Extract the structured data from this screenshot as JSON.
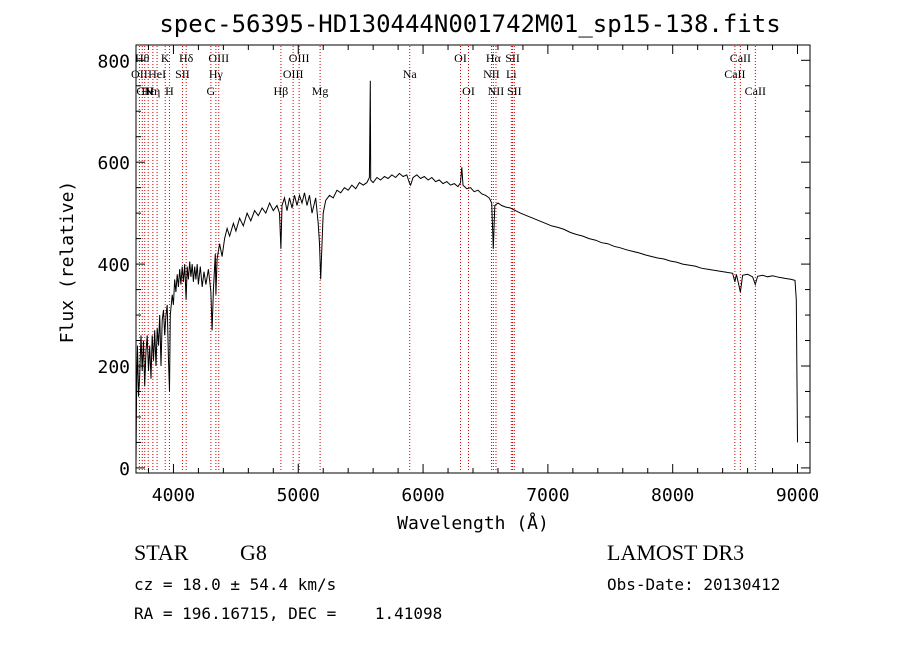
{
  "chart_data": {
    "type": "line",
    "title": "spec-56395-HD130444N001742M01_sp15-138.fits",
    "xlabel": "Wavelength (Å)",
    "ylabel": "Flux (relative)",
    "xlim": [
      3700,
      9100
    ],
    "ylim": [
      -10,
      830
    ],
    "x_ticks": [
      4000,
      5000,
      6000,
      7000,
      8000,
      9000
    ],
    "y_ticks": [
      0,
      200,
      400,
      600,
      800
    ],
    "series": [
      {
        "name": "spectrum",
        "points": [
          [
            3700,
            10
          ],
          [
            3705,
            150
          ],
          [
            3712,
            240
          ],
          [
            3720,
            140
          ],
          [
            3730,
            180
          ],
          [
            3740,
            260
          ],
          [
            3750,
            190
          ],
          [
            3760,
            250
          ],
          [
            3770,
            160
          ],
          [
            3780,
            230
          ],
          [
            3790,
            260
          ],
          [
            3800,
            190
          ],
          [
            3810,
            240
          ],
          [
            3820,
            175
          ],
          [
            3830,
            260
          ],
          [
            3840,
            210
          ],
          [
            3850,
            270
          ],
          [
            3860,
            200
          ],
          [
            3870,
            275
          ],
          [
            3880,
            240
          ],
          [
            3890,
            300
          ],
          [
            3900,
            200
          ],
          [
            3910,
            290
          ],
          [
            3920,
            310
          ],
          [
            3930,
            260
          ],
          [
            3940,
            300
          ],
          [
            3950,
            320
          ],
          [
            3960,
            210
          ],
          [
            3968,
            150
          ],
          [
            3975,
            300
          ],
          [
            3990,
            340
          ],
          [
            4000,
            320
          ],
          [
            4010,
            370
          ],
          [
            4020,
            345
          ],
          [
            4030,
            380
          ],
          [
            4040,
            355
          ],
          [
            4050,
            390
          ],
          [
            4060,
            360
          ],
          [
            4070,
            395
          ],
          [
            4080,
            365
          ],
          [
            4090,
            400
          ],
          [
            4101,
            330
          ],
          [
            4110,
            395
          ],
          [
            4120,
            370
          ],
          [
            4130,
            405
          ],
          [
            4140,
            375
          ],
          [
            4150,
            400
          ],
          [
            4160,
            365
          ],
          [
            4170,
            395
          ],
          [
            4180,
            370
          ],
          [
            4190,
            400
          ],
          [
            4200,
            360
          ],
          [
            4215,
            395
          ],
          [
            4230,
            355
          ],
          [
            4245,
            385
          ],
          [
            4260,
            360
          ],
          [
            4280,
            390
          ],
          [
            4300,
            345
          ],
          [
            4310,
            270
          ],
          [
            4320,
            350
          ],
          [
            4335,
            420
          ],
          [
            4340,
            340
          ],
          [
            4350,
            410
          ],
          [
            4370,
            440
          ],
          [
            4390,
            415
          ],
          [
            4410,
            450
          ],
          [
            4430,
            470
          ],
          [
            4450,
            455
          ],
          [
            4480,
            480
          ],
          [
            4500,
            465
          ],
          [
            4530,
            490
          ],
          [
            4560,
            475
          ],
          [
            4590,
            500
          ],
          [
            4620,
            485
          ],
          [
            4650,
            505
          ],
          [
            4680,
            495
          ],
          [
            4710,
            510
          ],
          [
            4740,
            500
          ],
          [
            4770,
            520
          ],
          [
            4800,
            505
          ],
          [
            4830,
            515
          ],
          [
            4850,
            500
          ],
          [
            4861,
            430
          ],
          [
            4870,
            515
          ],
          [
            4890,
            530
          ],
          [
            4910,
            505
          ],
          [
            4930,
            530
          ],
          [
            4950,
            510
          ],
          [
            4970,
            535
          ],
          [
            4990,
            515
          ],
          [
            5010,
            535
          ],
          [
            5030,
            520
          ],
          [
            5050,
            540
          ],
          [
            5070,
            515
          ],
          [
            5090,
            535
          ],
          [
            5110,
            500
          ],
          [
            5140,
            530
          ],
          [
            5160,
            480
          ],
          [
            5170,
            440
          ],
          [
            5180,
            370
          ],
          [
            5190,
            440
          ],
          [
            5200,
            500
          ],
          [
            5220,
            525
          ],
          [
            5250,
            535
          ],
          [
            5280,
            530
          ],
          [
            5310,
            545
          ],
          [
            5340,
            540
          ],
          [
            5370,
            550
          ],
          [
            5400,
            545
          ],
          [
            5430,
            555
          ],
          [
            5460,
            548
          ],
          [
            5490,
            560
          ],
          [
            5520,
            555
          ],
          [
            5550,
            560
          ],
          [
            5570,
            570
          ],
          [
            5577,
            760
          ],
          [
            5580,
            565
          ],
          [
            5600,
            560
          ],
          [
            5630,
            570
          ],
          [
            5660,
            565
          ],
          [
            5690,
            572
          ],
          [
            5720,
            568
          ],
          [
            5750,
            575
          ],
          [
            5780,
            570
          ],
          [
            5810,
            578
          ],
          [
            5840,
            572
          ],
          [
            5870,
            575
          ],
          [
            5890,
            560
          ],
          [
            5900,
            555
          ],
          [
            5920,
            570
          ],
          [
            5950,
            575
          ],
          [
            5980,
            568
          ],
          [
            6010,
            572
          ],
          [
            6040,
            565
          ],
          [
            6070,
            570
          ],
          [
            6100,
            562
          ],
          [
            6130,
            565
          ],
          [
            6160,
            558
          ],
          [
            6190,
            562
          ],
          [
            6220,
            555
          ],
          [
            6250,
            558
          ],
          [
            6280,
            552
          ],
          [
            6300,
            560
          ],
          [
            6310,
            590
          ],
          [
            6320,
            555
          ],
          [
            6350,
            548
          ],
          [
            6380,
            550
          ],
          [
            6410,
            542
          ],
          [
            6440,
            545
          ],
          [
            6470,
            538
          ],
          [
            6500,
            535
          ],
          [
            6530,
            530
          ],
          [
            6550,
            520
          ],
          [
            6563,
            430
          ],
          [
            6575,
            515
          ],
          [
            6600,
            520
          ],
          [
            6630,
            515
          ],
          [
            6660,
            512
          ],
          [
            6700,
            510
          ],
          [
            6740,
            505
          ],
          [
            6780,
            500
          ],
          [
            6830,
            495
          ],
          [
            6880,
            490
          ],
          [
            6930,
            485
          ],
          [
            6980,
            480
          ],
          [
            7030,
            475
          ],
          [
            7080,
            472
          ],
          [
            7130,
            468
          ],
          [
            7180,
            462
          ],
          [
            7230,
            458
          ],
          [
            7280,
            455
          ],
          [
            7330,
            450
          ],
          [
            7380,
            447
          ],
          [
            7430,
            442
          ],
          [
            7480,
            440
          ],
          [
            7530,
            435
          ],
          [
            7580,
            432
          ],
          [
            7630,
            428
          ],
          [
            7680,
            425
          ],
          [
            7730,
            422
          ],
          [
            7780,
            418
          ],
          [
            7830,
            415
          ],
          [
            7880,
            412
          ],
          [
            7930,
            410
          ],
          [
            7980,
            406
          ],
          [
            8030,
            404
          ],
          [
            8080,
            400
          ],
          [
            8130,
            398
          ],
          [
            8180,
            396
          ],
          [
            8230,
            392
          ],
          [
            8280,
            390
          ],
          [
            8330,
            388
          ],
          [
            8380,
            386
          ],
          [
            8430,
            384
          ],
          [
            8480,
            382
          ],
          [
            8498,
            365
          ],
          [
            8510,
            380
          ],
          [
            8542,
            345
          ],
          [
            8560,
            378
          ],
          [
            8600,
            380
          ],
          [
            8640,
            375
          ],
          [
            8662,
            360
          ],
          [
            8680,
            376
          ],
          [
            8720,
            378
          ],
          [
            8760,
            375
          ],
          [
            8800,
            377
          ],
          [
            8850,
            374
          ],
          [
            8900,
            372
          ],
          [
            8950,
            370
          ],
          [
            8980,
            368
          ],
          [
            8990,
            330
          ],
          [
            9000,
            50
          ]
        ]
      }
    ],
    "lines": [
      {
        "wavelength": 3727,
        "label": "OII",
        "row": 2
      },
      {
        "wavelength": 3750,
        "label": "Hθ",
        "row": 1
      },
      {
        "wavelength": 3770,
        "label": "CN",
        "row": 3
      },
      {
        "wavelength": 3798,
        "label": "Hε",
        "row": 3
      },
      {
        "wavelength": 3835,
        "label": "Hη",
        "row": 3
      },
      {
        "wavelength": 3869,
        "label": "HeI",
        "row": 2
      },
      {
        "wavelength": 3934,
        "label": "K",
        "row": 1
      },
      {
        "wavelength": 3968,
        "label": "H",
        "row": 3
      },
      {
        "wavelength": 4072,
        "label": "SII",
        "row": 2
      },
      {
        "wavelength": 4102,
        "label": "Hδ",
        "row": 1
      },
      {
        "wavelength": 4300,
        "label": "G",
        "row": 3
      },
      {
        "wavelength": 4340,
        "label": "Hγ",
        "row": 2
      },
      {
        "wavelength": 4363,
        "label": "OIII",
        "row": 1
      },
      {
        "wavelength": 4861,
        "label": "Hβ",
        "row": 3
      },
      {
        "wavelength": 4959,
        "label": "OIII",
        "row": 2
      },
      {
        "wavelength": 5007,
        "label": "OIII",
        "row": 1
      },
      {
        "wavelength": 5175,
        "label": "Mg",
        "row": 3
      },
      {
        "wavelength": 5893,
        "label": "Na",
        "row": 2
      },
      {
        "wavelength": 6300,
        "label": "OI",
        "row": 1
      },
      {
        "wavelength": 6364,
        "label": "OI",
        "row": 3
      },
      {
        "wavelength": 6548,
        "label": "NII",
        "row": 2
      },
      {
        "wavelength": 6563,
        "label": "Hα",
        "row": 1
      },
      {
        "wavelength": 6584,
        "label": "NII",
        "row": 3
      },
      {
        "wavelength": 6707,
        "label": "Li",
        "row": 2
      },
      {
        "wavelength": 6717,
        "label": "SII",
        "row": 1
      },
      {
        "wavelength": 6731,
        "label": "SII",
        "row": 3
      },
      {
        "wavelength": 8498,
        "label": "CaII",
        "row": 2
      },
      {
        "wavelength": 8542,
        "label": "CaII",
        "row": 1
      },
      {
        "wavelength": 8662,
        "label": "CaII",
        "row": 3
      }
    ]
  },
  "info": {
    "class": "STAR",
    "subclass": "G8",
    "survey": "LAMOST DR3",
    "cz": "cz = 18.0 ± 54.4 km/s",
    "obs_date": "Obs-Date: 20130412",
    "radec": "RA = 196.16715, DEC =    1.41098"
  },
  "colors": {
    "spectrum": "#000000",
    "line_marker": "#cc0000",
    "axes": "#000000"
  }
}
